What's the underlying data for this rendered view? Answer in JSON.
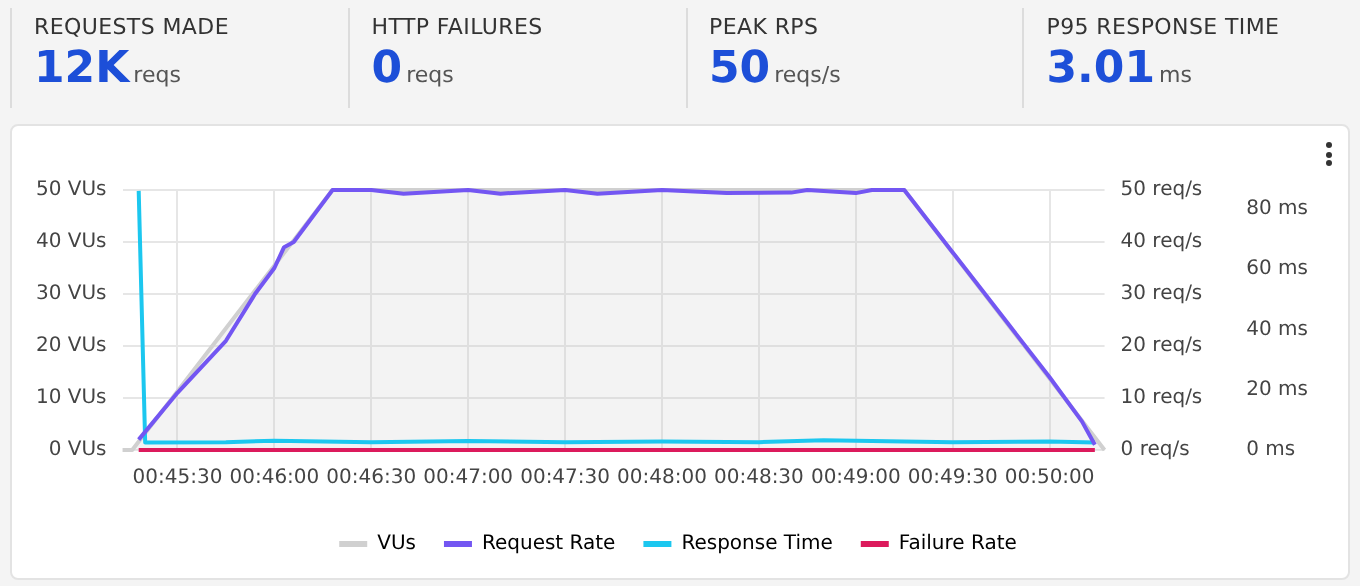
{
  "chart_data": [
    {
      "type": "other",
      "title": "REQUESTS MADE",
      "annotations": [
        "12K",
        "reqs"
      ]
    },
    {
      "type": "other",
      "title": "HTTP FAILURES",
      "annotations": [
        "0",
        "reqs"
      ]
    },
    {
      "type": "other",
      "title": "PEAK RPS",
      "annotations": [
        "50",
        "reqs/s"
      ]
    },
    {
      "type": "other",
      "title": "P95 RESPONSE TIME",
      "annotations": [
        "3.01",
        "ms"
      ]
    },
    {
      "type": "line",
      "grid": true,
      "legend": "bottom",
      "marker": "none",
      "xlim": [
        0.753611,
        0.838056
      ],
      "xticks": [
        {
          "value": 0.758333,
          "label": "00:45:30"
        },
        {
          "value": 0.766667,
          "label": "00:46:00"
        },
        {
          "value": 0.775,
          "label": "00:46:30"
        },
        {
          "value": 0.783333,
          "label": "00:47:00"
        },
        {
          "value": 0.791667,
          "label": "00:47:30"
        },
        {
          "value": 0.8,
          "label": "00:48:00"
        },
        {
          "value": 0.808333,
          "label": "00:48:30"
        },
        {
          "value": 0.816667,
          "label": "00:49:00"
        },
        {
          "value": 0.825,
          "label": "00:49:30"
        },
        {
          "value": 0.833333,
          "label": "00:50:00"
        }
      ],
      "ylim": [
        0,
        50
      ],
      "yticks": [
        {
          "value": 0,
          "label": "0 VUs"
        },
        {
          "value": 10,
          "label": "10 VUs"
        },
        {
          "value": 20,
          "label": "20 VUs"
        },
        {
          "value": 30,
          "label": "30 VUs"
        },
        {
          "value": 40,
          "label": "40 VUs"
        },
        {
          "value": 50,
          "label": "50 VUs"
        }
      ],
      "y2lim": [
        0,
        50
      ],
      "y2ticks": [
        {
          "value": 0,
          "label": "0 req/s"
        },
        {
          "value": 10,
          "label": "10 req/s"
        },
        {
          "value": 20,
          "label": "20 req/s"
        },
        {
          "value": 30,
          "label": "30 req/s"
        },
        {
          "value": 40,
          "label": "40 req/s"
        },
        {
          "value": 50,
          "label": "50 req/s"
        }
      ],
      "y3lim": [
        0,
        86.3
      ],
      "y3ticks": [
        {
          "value": 0,
          "label": "0 ms"
        },
        {
          "value": 20,
          "label": "20 ms"
        },
        {
          "value": 40,
          "label": "40 ms"
        },
        {
          "value": 60,
          "label": "60 ms"
        },
        {
          "value": 80,
          "label": "80 ms"
        }
      ],
      "series": [
        {
          "name": "VUs",
          "type": "area",
          "color": "#d0d0d0",
          "x": [
            0.753611,
            0.754444,
            0.771667,
            0.820833,
            0.838056
          ],
          "values": [
            0,
            0,
            50,
            50,
            0
          ]
        },
        {
          "name": "Request Rate",
          "axis": "y2",
          "color": "#7356f2",
          "x": [
            0.755,
            0.758333,
            0.7625,
            0.765,
            0.766667,
            0.7675,
            0.768333,
            0.771667,
            0.775,
            0.777778,
            0.783333,
            0.786111,
            0.791667,
            0.794444,
            0.8,
            0.805556,
            0.811111,
            0.8125,
            0.816667,
            0.818056,
            0.820833,
            0.825,
            0.829167,
            0.833333,
            0.836111,
            0.837222
          ],
          "values": [
            2,
            11,
            21,
            30,
            35,
            39,
            40,
            50,
            50,
            49.3,
            50,
            49.3,
            50,
            49.3,
            50,
            49.4,
            49.5,
            50,
            49.4,
            50,
            50,
            38,
            26,
            14,
            5.5,
            1
          ]
        },
        {
          "name": "Response Time",
          "axis": "y3",
          "color": "#1cc7ef",
          "x": [
            0.755,
            0.755556,
            0.7625,
            0.766667,
            0.775,
            0.783333,
            0.791667,
            0.8,
            0.808333,
            0.813889,
            0.825,
            0.833333,
            0.837222
          ],
          "values": [
            86,
            2.5,
            2.6,
            3.1,
            2.6,
            3.0,
            2.6,
            2.8,
            2.6,
            3.2,
            2.6,
            2.8,
            2.5
          ]
        },
        {
          "name": "Failure Rate",
          "axis": "y2",
          "color": "#dc1a5c",
          "x": [
            0.755,
            0.837222
          ],
          "values": [
            0,
            0
          ]
        }
      ]
    }
  ]
}
